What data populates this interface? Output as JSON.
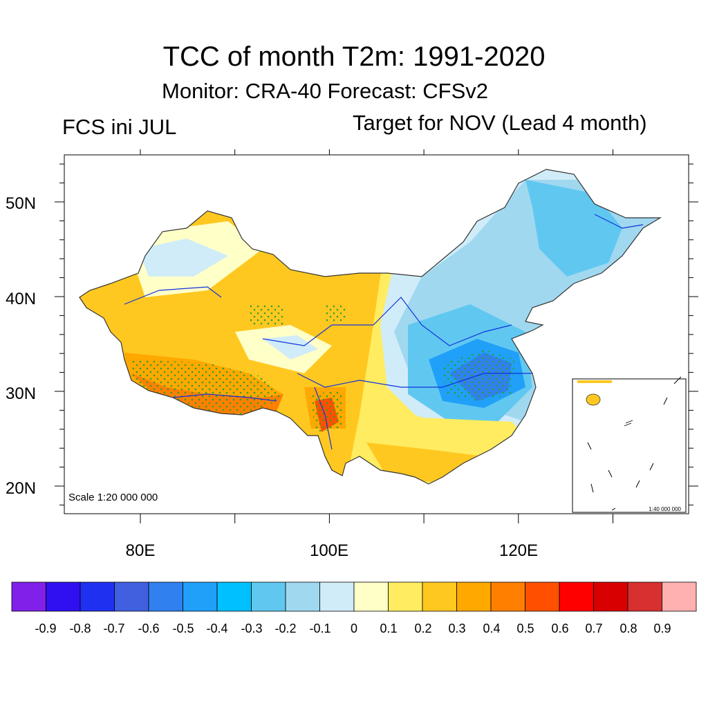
{
  "title": "TCC of month T2m: 1991-2020",
  "subtitle": "Monitor: CRA-40   Forecast: CFSv2",
  "left_subtitle": "FCS ini JUL",
  "right_subtitle": "Target for NOV (Lead 4 month)",
  "map": {
    "lon_range": [
      72,
      138
    ],
    "lat_range": [
      17,
      55
    ],
    "lat_ticks": [
      "20N",
      "30N",
      "40N",
      "50N"
    ],
    "lon_ticks": [
      "80E",
      "100E",
      "120E"
    ],
    "scale_text": "Scale 1:20 000 000",
    "inset_scale_text": "1:40 000 000"
  },
  "colorbar": {
    "colors": [
      "#8020e8",
      "#3010f0",
      "#2030f0",
      "#4060e0",
      "#3080f0",
      "#20a0f8",
      "#00c0ff",
      "#60c8f0",
      "#a0d8f0",
      "#d0ecf8",
      "#ffffc8",
      "#ffec60",
      "#ffc820",
      "#ffa800",
      "#ff8000",
      "#ff5000",
      "#ff0000",
      "#d80000",
      "#d83030",
      "#ffb0b0"
    ],
    "labels": [
      "-0.9",
      "-0.8",
      "-0.7",
      "-0.6",
      "-0.5",
      "-0.4",
      "-0.3",
      "-0.2",
      "-0.1",
      "0",
      "0.1",
      "0.2",
      "0.3",
      "0.4",
      "0.5",
      "0.6",
      "0.7",
      "0.8",
      "0.9"
    ]
  },
  "stipple_color": "#2ca02c",
  "border_color": "#333333",
  "river_color": "#1030e0"
}
